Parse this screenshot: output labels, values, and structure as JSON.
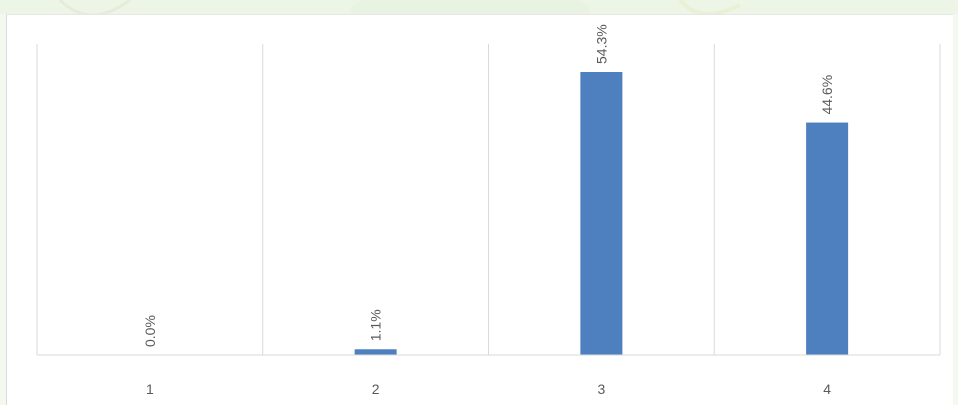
{
  "chart_data": {
    "type": "bar",
    "categories": [
      "1",
      "2",
      "3",
      "4"
    ],
    "values": [
      0.0,
      1.1,
      54.3,
      44.6
    ],
    "data_labels": [
      "0.0%",
      "1.1%",
      "54.3%",
      "44.6%"
    ],
    "unit": "%",
    "ylim": [
      0,
      60
    ],
    "grid": "vertical category separators",
    "legend": "none",
    "bar_color": "#4e7fbf",
    "title": "",
    "xlabel": "",
    "ylabel": ""
  }
}
